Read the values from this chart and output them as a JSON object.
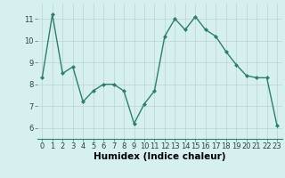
{
  "x": [
    0,
    1,
    2,
    3,
    4,
    5,
    6,
    7,
    8,
    9,
    10,
    11,
    12,
    13,
    14,
    15,
    16,
    17,
    18,
    19,
    20,
    21,
    22,
    23
  ],
  "y": [
    8.3,
    11.2,
    8.5,
    8.8,
    7.2,
    7.7,
    8.0,
    8.0,
    7.7,
    6.2,
    7.1,
    7.7,
    10.2,
    11.0,
    10.5,
    11.1,
    10.5,
    10.2,
    9.5,
    8.9,
    8.4,
    8.3,
    8.3,
    6.1
  ],
  "xlabel": "Humidex (Indice chaleur)",
  "ylim": [
    5.5,
    11.7
  ],
  "xlim": [
    -0.5,
    23.5
  ],
  "yticks": [
    6,
    7,
    8,
    9,
    10,
    11
  ],
  "xticks": [
    0,
    1,
    2,
    3,
    4,
    5,
    6,
    7,
    8,
    9,
    10,
    11,
    12,
    13,
    14,
    15,
    16,
    17,
    18,
    19,
    20,
    21,
    22,
    23
  ],
  "line_color": "#2e7d6e",
  "marker": "D",
  "marker_size": 2.0,
  "bg_color": "#d6f0ef",
  "grid_color": "#c0d8d5",
  "tick_label_fontsize": 6.0,
  "xlabel_fontsize": 7.5
}
